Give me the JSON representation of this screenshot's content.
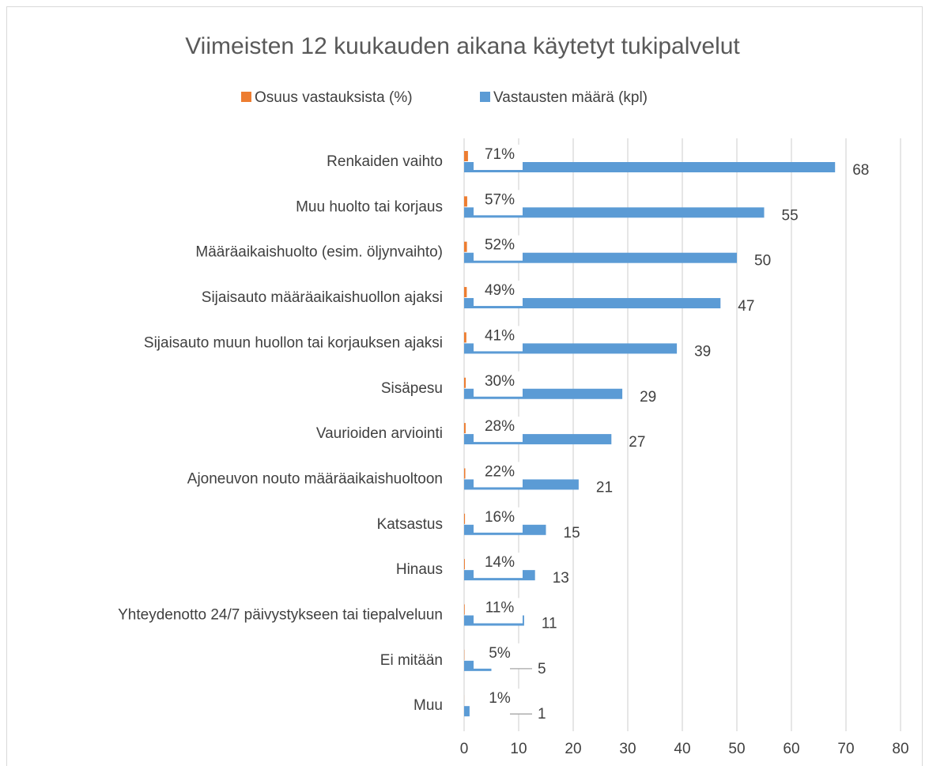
{
  "chart_data": {
    "type": "bar",
    "orientation": "horizontal",
    "title": "Viimeisten 12 kuukauden aikana käytetyt tukipalvelut",
    "categories": [
      "Renkaiden vaihto",
      "Muu huolto tai korjaus",
      "Määräaikaishuolto (esim. öljynvaihto)",
      "Sijaisauto määräaikaishuollon ajaksi",
      "Sijaisauto muun huollon tai korjauksen ajaksi",
      "Sisäpesu",
      "Vaurioiden arviointi",
      "Ajoneuvon nouto määräaikaishuoltoon",
      "Katsastus",
      "Hinaus",
      "Yhteydenotto 24/7 päivystykseen tai tiepalveluun",
      "Ei mitään",
      "Muu"
    ],
    "series": [
      {
        "name": "Osuus vastauksista (%)",
        "color": "#ed7d31",
        "values": [
          0.71,
          0.57,
          0.52,
          0.49,
          0.41,
          0.3,
          0.28,
          0.22,
          0.16,
          0.14,
          0.11,
          0.05,
          0.01
        ],
        "value_labels": [
          "71%",
          "57%",
          "52%",
          "49%",
          "41%",
          "30%",
          "28%",
          "22%",
          "16%",
          "14%",
          "11%",
          "5%",
          "1%"
        ]
      },
      {
        "name": "Vastausten määrä (kpl)",
        "color": "#5b9bd5",
        "values": [
          68,
          55,
          50,
          47,
          39,
          29,
          27,
          21,
          15,
          13,
          11,
          5,
          1
        ]
      }
    ],
    "xlim": [
      0,
      80
    ],
    "xticks": [
      0,
      10,
      20,
      30,
      40,
      50,
      60,
      70,
      80
    ],
    "grid": true,
    "legend": "top"
  }
}
